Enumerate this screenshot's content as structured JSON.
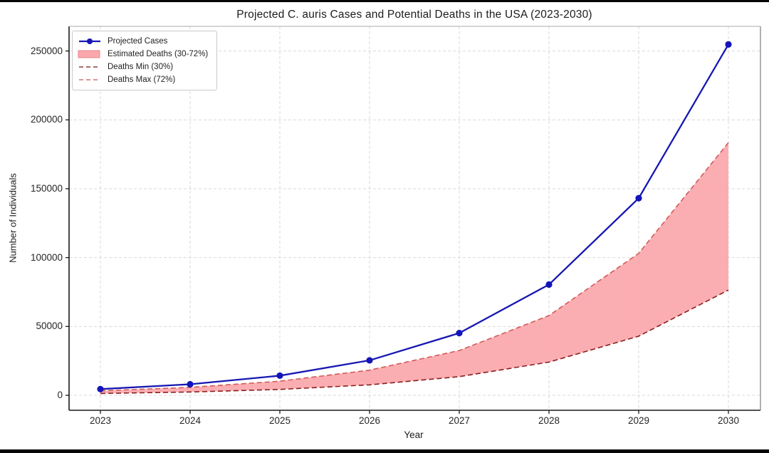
{
  "chart_data": {
    "type": "line",
    "title": "Projected C. auris Cases and Potential Deaths in the USA (2023-2030)",
    "xlabel": "Year",
    "ylabel": "Number of Individuals",
    "categories": [
      2023,
      2024,
      2025,
      2026,
      2027,
      2028,
      2029,
      2030
    ],
    "series": [
      {
        "name": "Projected Cases",
        "kind": "line-marker",
        "color": "#1717b3",
        "marker_color": "#1414bb",
        "values": [
          4500,
          8010,
          14258,
          25379,
          45174,
          80410,
          143131,
          254772
        ]
      },
      {
        "name": "Estimated Deaths (30-72%)",
        "kind": "band",
        "fill": "#fba7ab",
        "edge": "#e8888d",
        "lower": [
          1350,
          2403,
          4277,
          7614,
          13552,
          24123,
          42939,
          76432
        ],
        "upper": [
          3240,
          5767,
          10266,
          18273,
          32526,
          57896,
          103054,
          183436
        ]
      },
      {
        "name": "Deaths Min (30%)",
        "kind": "dashed",
        "color": "#8b1f1f",
        "values": [
          1350,
          2403,
          4277,
          7614,
          13552,
          24123,
          42939,
          76432
        ]
      },
      {
        "name": "Deaths Max (72%)",
        "kind": "dashed",
        "color": "#d25a5a",
        "values": [
          3240,
          5767,
          10266,
          18273,
          32526,
          57896,
          103054,
          183436
        ]
      }
    ],
    "legend": {
      "position": "upper left",
      "items": [
        {
          "label": "Projected Cases",
          "kind": "line-marker",
          "color": "#1717b3"
        },
        {
          "label": "Estimated Deaths (30-72%)",
          "kind": "patch",
          "fill": "#fba7ab",
          "edge": "#e8888d"
        },
        {
          "label": "Deaths Min (30%)",
          "kind": "dashed",
          "color": "#9a5a5a"
        },
        {
          "label": "Deaths Max (72%)",
          "kind": "dashed",
          "color": "#d28a8a"
        }
      ]
    },
    "y_ticks": [
      0,
      50000,
      100000,
      150000,
      200000,
      250000
    ],
    "ylim": [
      -11000,
      268000
    ],
    "grid": true,
    "grid_style": "dashed",
    "grid_color": "#d9d9d9",
    "axis_colors": {
      "left": "#1a1a1a",
      "bottom": "#1a1a1a",
      "right": "#8f8f8f",
      "top": "#ababab"
    }
  }
}
